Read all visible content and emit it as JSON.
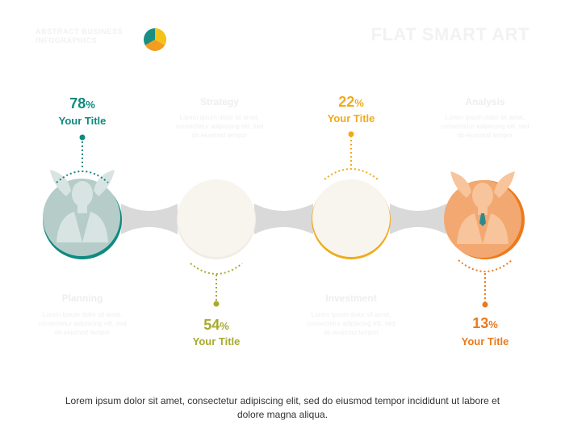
{
  "header": {
    "logo_text": "ABSTRACT BUSINESS INFOGRAPHICS",
    "title": "FLAT SMART ART"
  },
  "items": [
    {
      "percent": "78",
      "title": "Your Title",
      "color": "#0f8a7f"
    },
    {
      "percent": "54",
      "title": "Your Title",
      "color": "#a7aa2e"
    },
    {
      "percent": "22",
      "title": "Your Title",
      "color": "#f0ab1b"
    },
    {
      "percent": "13",
      "title": "Your Title",
      "color": "#ec7a1c"
    }
  ],
  "percent_sign": "%",
  "ghost_blocks": [
    {
      "title": "Strategy",
      "text": "Lorem ipsum dolor sit amet, consectetur adipiscing elit, sed do eiusmod tempor"
    },
    {
      "title": "Analysis",
      "text": "Lorem ipsum dolor sit amet, consectetur adipiscing elit, sed do eiusmod tempor"
    },
    {
      "title": "Planning",
      "text": "Lorem ipsum dolor sit amet, consectetur adipiscing elit, sed do eiusmod tempor"
    },
    {
      "title": "Investment",
      "text": "Lorem ipsum dolor sit amet, consectetur adipiscing elit, sed do eiusmod tempor"
    }
  ],
  "caption": "Lorem ipsum dolor sit amet, consectetur adipiscing elit, sed do eiusmod tempor incididunt ut labore et dolore magna aliqua.",
  "colors": {
    "connector": "#d9d9d9",
    "circle_fill_teal": "#b5ccc8",
    "circle_fill_light": "#f8f4ee",
    "circle_fill_orange": "#f2a870",
    "person_light": "#d7e4e1",
    "person_orange": "#f7c49b"
  },
  "icons": {
    "person_1": "businessman-icon",
    "person_4": "businessman-icon",
    "logo": "pie-chart-logo-icon"
  }
}
